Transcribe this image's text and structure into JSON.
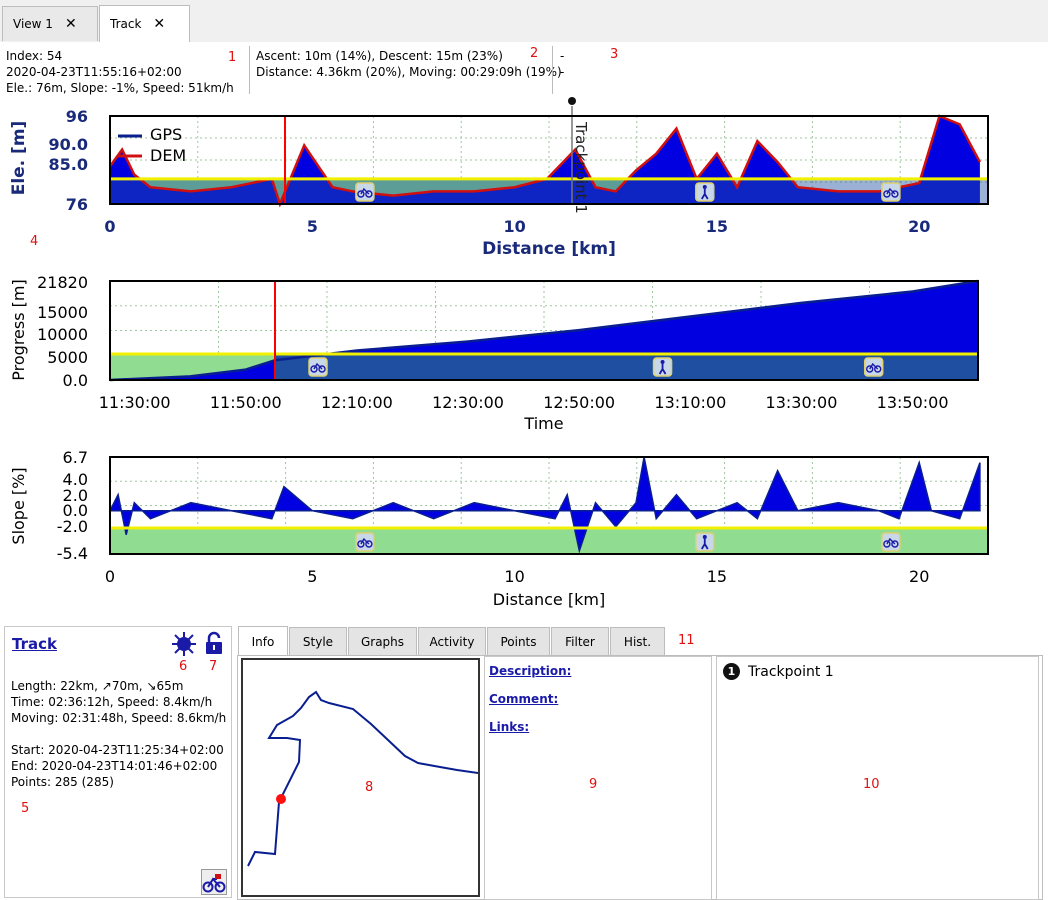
{
  "tabs": [
    {
      "label": "View 1",
      "close": "✕"
    },
    {
      "label": "Track",
      "close": "✕"
    }
  ],
  "info": {
    "index": "Index: 54",
    "time": "2020-04-23T11:55:16+02:00",
    "ele": "Ele.: 76m, Slope: -1%, Speed: 51km/h",
    "ascent": "Ascent: 10m (14%), Descent: 15m (23%)",
    "distance": "Distance: 4.36km (20%), Moving: 00:29:09h (19%)",
    "col3_line1": "-",
    "col3_line2": "-"
  },
  "markers": {
    "m1": "1",
    "m2": "2",
    "m3": "3",
    "m4": "4",
    "m5": "5",
    "m6": "6",
    "m7": "7",
    "m8": "8",
    "m9": "9",
    "m10": "10",
    "m11": "11"
  },
  "chart_data": [
    {
      "type": "area",
      "ylabel": "Ele. [m]",
      "xlabel": "Distance [km]",
      "y_ticks": [
        "96",
        "90.0",
        "85.0",
        "76"
      ],
      "x_ticks": [
        "0",
        "5",
        "10",
        "15",
        "20"
      ],
      "legend": [
        "GPS",
        "DEM"
      ],
      "annotation": "Trackpoint 1",
      "series": [
        {
          "name": "GPS",
          "x": [
            0,
            0.3,
            0.6,
            1,
            2,
            3,
            4,
            4.2,
            4.8,
            5.5,
            6,
            7,
            8,
            9,
            10,
            10.8,
            11.2,
            11.5,
            12,
            12.5,
            13,
            13.5,
            14,
            14.5,
            15,
            15.5,
            16,
            16.5,
            17,
            18,
            19,
            19.5,
            20,
            20.5,
            21,
            21.5
          ],
          "y": [
            85,
            89,
            83,
            80,
            79,
            80,
            82,
            76,
            90,
            80,
            79,
            78,
            79,
            79,
            80,
            82,
            86,
            89,
            80,
            79,
            84,
            88,
            94,
            82,
            88,
            80,
            91,
            86,
            80,
            79,
            79,
            80,
            81,
            97,
            95,
            86
          ]
        },
        {
          "name": "DEM",
          "x": [
            0,
            0.3,
            0.6,
            1,
            2,
            3,
            4,
            4.2,
            4.8,
            5.5,
            6,
            7,
            8,
            9,
            10,
            10.8,
            11.2,
            11.5,
            12,
            12.5,
            13,
            13.5,
            14,
            14.5,
            15,
            15.5,
            16,
            16.5,
            17,
            18,
            19,
            19.5,
            20,
            20.5,
            21,
            21.5
          ],
          "y": [
            85,
            89,
            83,
            80,
            79,
            80,
            82,
            76,
            90,
            80,
            79,
            78,
            79,
            79,
            80,
            82,
            86,
            89,
            80,
            79,
            84,
            88,
            94,
            82,
            88,
            80,
            91,
            86,
            80,
            79,
            79,
            80,
            81,
            97,
            95,
            86
          ]
        }
      ],
      "ylim": [
        76,
        97
      ],
      "xlim": [
        0,
        21.7
      ]
    },
    {
      "type": "area",
      "ylabel": "Progress [m]",
      "xlabel": "Time",
      "y_ticks": [
        "21820",
        "15000",
        "10000",
        "5000",
        "0.0"
      ],
      "x_ticks": [
        "11:30:00",
        "11:50:00",
        "12:10:00",
        "12:30:00",
        "12:50:00",
        "13:10:00",
        "13:30:00",
        "13:50:00"
      ],
      "series": [
        {
          "name": "Progress",
          "x": [
            "11:25:34",
            "11:40:00",
            "11:50:00",
            "11:55:16",
            "12:10:00",
            "12:30:00",
            "12:50:00",
            "13:10:00",
            "13:30:00",
            "13:50:00",
            "14:01:46"
          ],
          "y": [
            0,
            800,
            2300,
            4360,
            6500,
            8500,
            11000,
            14000,
            17000,
            19500,
            21820
          ]
        }
      ],
      "ylim": [
        0,
        21820
      ]
    },
    {
      "type": "area",
      "ylabel": "Slope [%]",
      "xlabel": "Distance [km]",
      "y_ticks": [
        "6.7",
        "4.0",
        "2.0",
        "0.0",
        "-2.0",
        "-5.4"
      ],
      "x_ticks": [
        "0",
        "5",
        "10",
        "15",
        "20"
      ],
      "series": [
        {
          "name": "Slope",
          "x": [
            0,
            0.2,
            0.4,
            0.6,
            1,
            2,
            3,
            4,
            4.3,
            5,
            6,
            7,
            8,
            9,
            10,
            11,
            11.3,
            11.6,
            12,
            12.5,
            13,
            13.2,
            13.5,
            14,
            14.5,
            15,
            15.5,
            16,
            16.5,
            17,
            18,
            19,
            19.5,
            20,
            20.3,
            21,
            21.5
          ],
          "y": [
            0,
            2,
            -3,
            1,
            -1,
            1,
            0,
            -1,
            3,
            0,
            -1,
            1,
            -1,
            1,
            0,
            -1,
            2,
            -5,
            1,
            -2,
            1,
            6.7,
            -1,
            2,
            -1,
            0,
            1,
            -1,
            5,
            0,
            1,
            0,
            -1,
            6,
            0,
            -1,
            6
          ]
        }
      ],
      "ylim": [
        -5.4,
        6.7
      ],
      "xlim": [
        0,
        21.7
      ]
    }
  ],
  "track_panel": {
    "title": "Track",
    "length": "Length: 22km, ↗70m, ↘65m",
    "time": "Time: 02:36:12h, Speed: 8.4km/h",
    "moving": "Moving: 02:31:48h, Speed: 8.6km/h",
    "start": "Start: 2020-04-23T11:25:34+02:00",
    "end": "End: 2020-04-23T14:01:46+02:00",
    "points": "Points: 285 (285)"
  },
  "subtabs": [
    "Info",
    "Style",
    "Graphs",
    "Activity",
    "Points",
    "Filter",
    "Hist."
  ],
  "details": {
    "description": "Description:",
    "comment": "Comment:",
    "links": "Links:"
  },
  "waypoints": [
    {
      "num": "1",
      "name": "Trackpoint 1"
    }
  ],
  "colors": {
    "track": "#0a1f8f",
    "fill": "#0000e0",
    "dem": "#d01010",
    "marker": "#ff0000",
    "yellow": "#f0f000",
    "green": "#90dc90"
  }
}
